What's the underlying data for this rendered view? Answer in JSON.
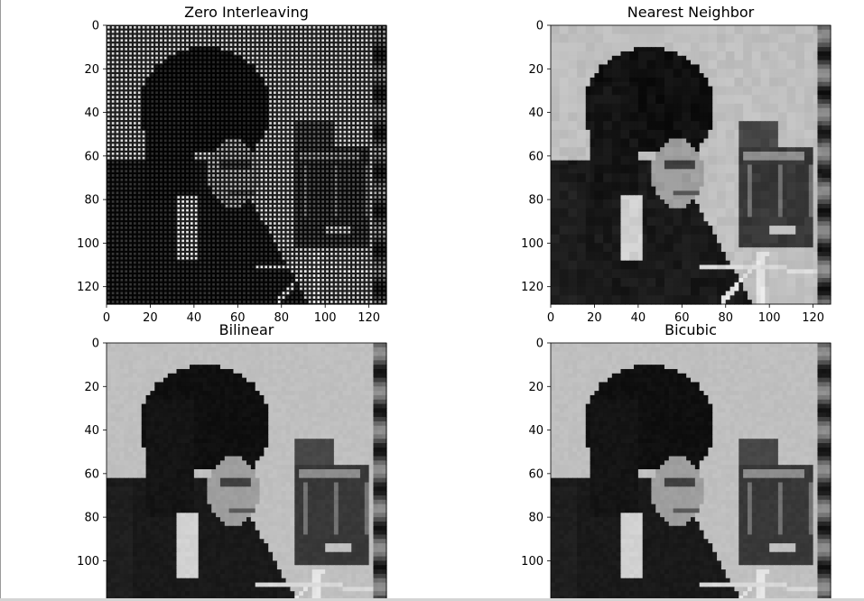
{
  "figure": {
    "background": "#ffffff"
  },
  "chart_data": [
    {
      "type": "heatmap",
      "title": "Zero Interleaving",
      "colormap": "gray",
      "pattern": "dotgrid",
      "xlim": [
        0,
        128
      ],
      "ylim": [
        128,
        0
      ],
      "xticks": [
        0,
        20,
        40,
        60,
        80,
        100,
        120
      ],
      "yticks": [
        0,
        20,
        40,
        60,
        80,
        100,
        120
      ],
      "xtick_labels": [
        "0",
        "20",
        "40",
        "60",
        "80",
        "100",
        "120"
      ],
      "ytick_labels": [
        "0",
        "20",
        "40",
        "60",
        "80",
        "100",
        "120"
      ]
    },
    {
      "type": "heatmap",
      "title": "Nearest Neighbor",
      "colormap": "gray",
      "pattern": "blocky",
      "xlim": [
        0,
        128
      ],
      "ylim": [
        128,
        0
      ],
      "xticks": [
        0,
        20,
        40,
        60,
        80,
        100,
        120
      ],
      "yticks": [
        0,
        20,
        40,
        60,
        80,
        100,
        120
      ],
      "xtick_labels": [
        "0",
        "20",
        "40",
        "60",
        "80",
        "100",
        "120"
      ],
      "ytick_labels": [
        "0",
        "20",
        "40",
        "60",
        "80",
        "100",
        "120"
      ]
    },
    {
      "type": "heatmap",
      "title": "Bilinear",
      "colormap": "gray",
      "pattern": "smooth",
      "xlim": [
        0,
        128
      ],
      "ylim": [
        128,
        0
      ],
      "xticks": [],
      "yticks": [
        0,
        20,
        40,
        60,
        80,
        100
      ],
      "xtick_labels": [],
      "ytick_labels": [
        "0",
        "20",
        "40",
        "60",
        "80",
        "100"
      ]
    },
    {
      "type": "heatmap",
      "title": "Bicubic",
      "colormap": "gray",
      "pattern": "smooth",
      "xlim": [
        0,
        128
      ],
      "ylim": [
        128,
        0
      ],
      "xticks": [],
      "yticks": [
        0,
        20,
        40,
        60,
        80,
        100
      ],
      "xtick_labels": [],
      "ytick_labels": [
        "0",
        "20",
        "40",
        "60",
        "80",
        "100"
      ]
    }
  ]
}
